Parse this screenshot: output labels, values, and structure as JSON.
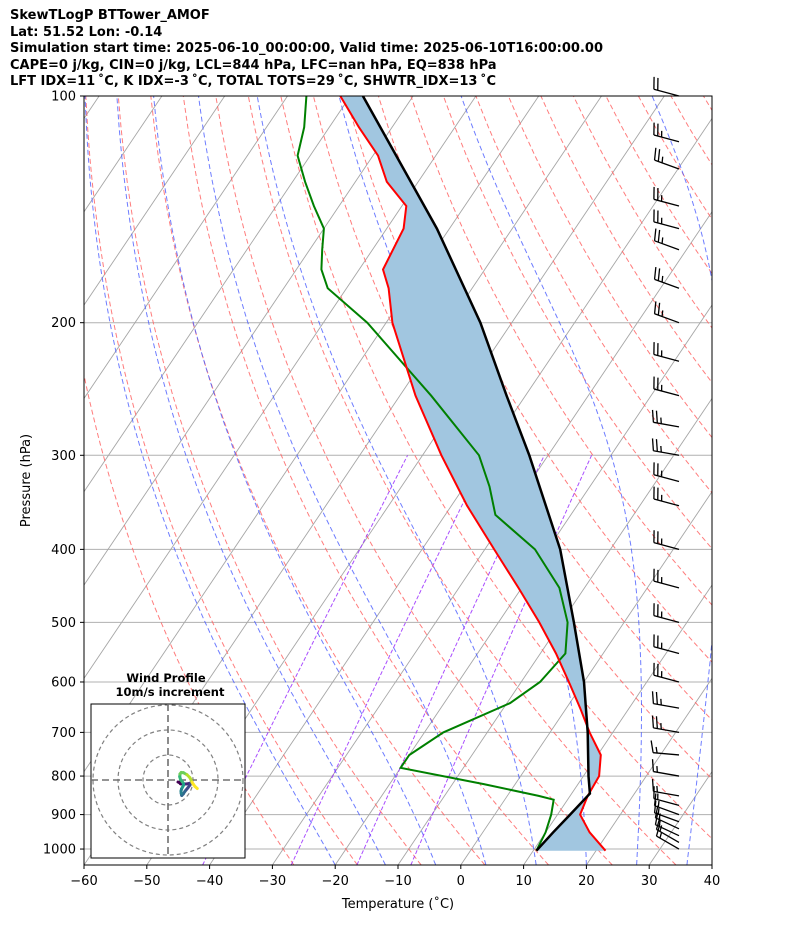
{
  "header": {
    "line1": "SkewTLogP BTTower_AMOF",
    "line2": "Lat: 51.52   Lon: -0.14",
    "line3": "Simulation start time: 2025-06-10_00:00:00, Valid time: 2025-06-10T16:00:00.00",
    "line4": "CAPE=0 j/kg, CIN=0 j/kg, LCL=844 hPa, LFC=nan hPa, EQ=838 hPa",
    "line5": "LFT IDX=11 ˚C, K IDX=-3 ˚C, TOTAL TOTS=29 ˚C, SHWTR_IDX=13 ˚C"
  },
  "chart_data": {
    "type": "skewt",
    "xlabel": "Temperature (˚C)",
    "ylabel": "Pressure (hPa)",
    "xlim": [
      -60,
      40
    ],
    "ylim": [
      1050,
      100
    ],
    "x_ticks": [
      -60,
      -50,
      -40,
      -30,
      -20,
      -10,
      0,
      10,
      20,
      30,
      40
    ],
    "x_tick_labels": [
      "−60",
      "−50",
      "−40",
      "−30",
      "−20",
      "−10",
      "0",
      "10",
      "20",
      "30",
      "40"
    ],
    "y_ticks": [
      1000,
      900,
      800,
      700,
      600,
      500,
      400,
      300,
      200,
      100
    ],
    "y_tick_labels": [
      "1000",
      "900",
      "800",
      "700",
      "600",
      "500",
      "400",
      "300",
      "200",
      "100"
    ],
    "skew_note": "isotherms slant up and to the right; a vertical line at 13 ˚C near 845 hPa reaches about 25 ˚C at 600 hPa",
    "temperature": {
      "name": "Temperature",
      "color": "#ff0000",
      "p": [
        1005,
        950,
        900,
        850,
        800,
        750,
        700,
        650,
        600,
        550,
        500,
        450,
        400,
        350,
        300,
        250,
        200,
        180,
        170,
        150,
        140,
        130,
        120,
        110,
        100
      ],
      "t": [
        21.5,
        17,
        13.6,
        12.8,
        12.5,
        10.5,
        6.3,
        2.2,
        -2.4,
        -7.5,
        -13.5,
        -20.5,
        -28.5,
        -37.5,
        -47.0,
        -57.5,
        -69.0,
        -73.3,
        -76.2,
        -77.3,
        -79.3,
        -85.0,
        -89.2,
        -95.3,
        -101.6
      ]
    },
    "dewpoint": {
      "name": "Dewpoint",
      "color": "#008000",
      "p": [
        1005,
        950,
        900,
        860,
        850,
        820,
        780,
        750,
        700,
        640,
        600,
        550,
        500,
        450,
        400,
        360,
        330,
        300,
        250,
        200,
        180,
        170,
        160,
        150,
        140,
        130,
        120,
        110,
        100
      ],
      "td": [
        10.5,
        10.0,
        9.0,
        7.8,
        5.0,
        -5.0,
        -20.0,
        -20.0,
        -17.0,
        -9.5,
        -7.0,
        -6.0,
        -9.0,
        -14.0,
        -22.0,
        -32.0,
        -36.0,
        -41.0,
        -55.0,
        -73.0,
        -83.0,
        -86.0,
        -88.0,
        -90.0,
        -94.0,
        -98.0,
        -102.0,
        -104.0,
        -107.0
      ]
    },
    "parcel": {
      "name": "Parcel profile",
      "color": "#000000",
      "p": [
        1005,
        950,
        900,
        844,
        800,
        700,
        600,
        500,
        400,
        300,
        250,
        200,
        150,
        100
      ],
      "t": [
        10.5,
        11.2,
        12.0,
        12.9,
        10.8,
        6.0,
        0.0,
        -8.0,
        -18.0,
        -33.0,
        -43.0,
        -55.0,
        -72.0,
        -98.0
      ]
    },
    "shaded_area": {
      "name": "Parcel minus environment (CIN/CAPE) area",
      "color": "#a1c6e0",
      "between": [
        "temperature",
        "parcel"
      ]
    },
    "background_lines": {
      "isotherm_color": "#a6a6a6",
      "dry_adiabat_color": "#ff6666",
      "moist_adiabat_color": "#4a5cff",
      "mixing_ratio_color": "#9b30ff"
    },
    "wind_barbs": {
      "p": [
        1000,
        980,
        960,
        940,
        920,
        900,
        875,
        850,
        800,
        750,
        700,
        650,
        600,
        550,
        500,
        450,
        400,
        350,
        325,
        300,
        275,
        250,
        225,
        200,
        180,
        160,
        150,
        140,
        125,
        115,
        100
      ],
      "speed_kt": [
        15,
        15,
        15,
        15,
        15,
        15,
        15,
        15,
        15,
        15,
        25,
        25,
        25,
        25,
        25,
        25,
        25,
        25,
        25,
        25,
        25,
        25,
        25,
        25,
        25,
        25,
        25,
        25,
        25,
        25,
        20
      ],
      "dir_deg": [
        300,
        300,
        295,
        295,
        290,
        290,
        285,
        280,
        280,
        275,
        280,
        280,
        285,
        285,
        285,
        285,
        285,
        285,
        285,
        280,
        280,
        285,
        285,
        290,
        290,
        290,
        285,
        285,
        290,
        285,
        285
      ]
    },
    "hodograph": {
      "title": "Wind Profile",
      "subtitle": "10m/s increment",
      "rings_ms": [
        10,
        20,
        30
      ],
      "colormap": "viridis",
      "u": [
        4.0,
        4.5,
        5.0,
        6.0,
        7.0,
        8.0,
        9.0,
        8.8,
        7.9,
        6.8,
        6.1,
        5.5,
        5.3,
        5.2,
        5.4,
        5.8,
        6.2,
        6.2,
        5.7,
        5.0,
        4.7,
        4.8,
        5.3,
        6.2,
        7.6,
        8.7,
        9.2,
        9.6,
        10.2,
        10.8,
        11.7
      ],
      "v": [
        -0.8,
        -1.0,
        -1.5,
        -1.6,
        -1.6,
        -1.5,
        -1.2,
        -2.0,
        -3.2,
        -4.5,
        -5.6,
        -6.2,
        -5.4,
        -4.5,
        -3.6,
        -2.9,
        -2.1,
        -1.4,
        -0.7,
        0.2,
        1.3,
        2.4,
        3.0,
        2.9,
        2.1,
        1.0,
        0.1,
        -0.9,
        -1.8,
        -2.6,
        -3.4
      ]
    }
  }
}
